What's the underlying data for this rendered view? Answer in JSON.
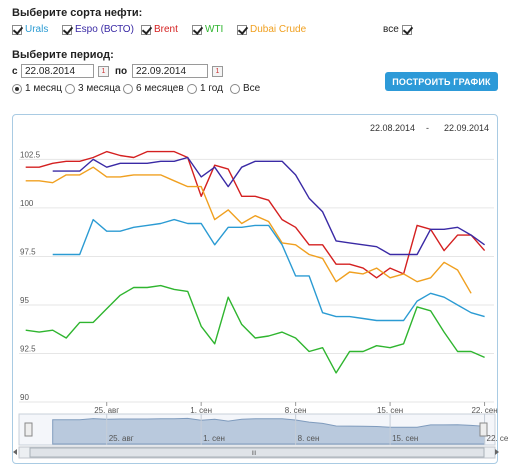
{
  "oil_select": {
    "title": "Выберите сорта нефти:",
    "items": [
      {
        "label": "Urals",
        "color": "#2b9bd3",
        "checked": true
      },
      {
        "label": "Espo (ВСТО)",
        "color": "#3a2aa5",
        "checked": true
      },
      {
        "label": "Brent",
        "color": "#d42020",
        "checked": true
      },
      {
        "label": "WTI",
        "color": "#2fb52f",
        "checked": true
      },
      {
        "label": "Dubai Crude",
        "color": "#f0a020",
        "checked": true
      }
    ],
    "all_label": "все",
    "all_checked": true
  },
  "period": {
    "title": "Выберите период:",
    "from_label": "с",
    "from_value": "22.08.2014",
    "to_label": "по",
    "to_value": "22.09.2014",
    "calendar_glyph": "1",
    "options": [
      "1 месяц",
      "3 месяца",
      "6 месяцев",
      "1 год",
      "Все"
    ],
    "selected": 0
  },
  "build_button": "ПОСТРОИТЬ ГРАФИК",
  "chart_range": {
    "from": "22.08.2014",
    "sep": "-",
    "to": "22.09.2014"
  },
  "navigator": {
    "labels": [
      "25. авг",
      "1. сен",
      "8. сен",
      "15. сен",
      "22. се"
    ],
    "scroll_glyph": "III"
  },
  "chart_data": {
    "type": "line",
    "title": "",
    "xlabel": "",
    "ylabel": "",
    "ylim": [
      90,
      103.5
    ],
    "yticks": [
      90,
      92.5,
      95,
      97.5,
      100,
      102.5
    ],
    "xticks": [
      "25. авг",
      "1. сен",
      "8. сен",
      "15. сен",
      "22. сен"
    ],
    "series": [
      {
        "name": "Brent",
        "color": "#d42020",
        "points": [
          [
            -3,
            102.1
          ],
          [
            -2,
            102.1
          ],
          [
            -1,
            102.3
          ],
          [
            0,
            102.4
          ],
          [
            1,
            102.4
          ],
          [
            2,
            102.6
          ],
          [
            3,
            102.9
          ],
          [
            4,
            102.7
          ],
          [
            5,
            102.6
          ],
          [
            6,
            102.9
          ],
          [
            7,
            102.9
          ],
          [
            8,
            102.9
          ],
          [
            9,
            102.6
          ],
          [
            10,
            100.6
          ],
          [
            11,
            102.2
          ],
          [
            12,
            102.0
          ],
          [
            13,
            100.6
          ],
          [
            14,
            100.6
          ],
          [
            15,
            100.4
          ],
          [
            16,
            99.4
          ],
          [
            17,
            99.0
          ],
          [
            18,
            98.1
          ],
          [
            19,
            98.1
          ],
          [
            20,
            97.1
          ],
          [
            21,
            97.1
          ],
          [
            22,
            96.9
          ],
          [
            23,
            96.4
          ],
          [
            24,
            96.9
          ],
          [
            25,
            96.6
          ],
          [
            26,
            99.1
          ],
          [
            27,
            98.9
          ],
          [
            28,
            97.8
          ],
          [
            29,
            98.6
          ],
          [
            30,
            98.6
          ],
          [
            31,
            97.8
          ]
        ]
      },
      {
        "name": "Espo (ВСТО)",
        "color": "#3a2aa5",
        "points": [
          [
            -1,
            101.9
          ],
          [
            0,
            101.9
          ],
          [
            1,
            101.9
          ],
          [
            2,
            102.5
          ],
          [
            3,
            102.1
          ],
          [
            4,
            102.3
          ],
          [
            5,
            102.3
          ],
          [
            6,
            102.3
          ],
          [
            7,
            102.4
          ],
          [
            8,
            102.4
          ],
          [
            9,
            102.6
          ],
          [
            10,
            101.6
          ],
          [
            11,
            102.1
          ],
          [
            12,
            101.1
          ],
          [
            13,
            102.1
          ],
          [
            14,
            102.4
          ],
          [
            15,
            102.4
          ],
          [
            16,
            102.4
          ],
          [
            17,
            101.7
          ],
          [
            18,
            100.5
          ],
          [
            19,
            99.8
          ],
          [
            20,
            98.3
          ],
          [
            21,
            98.2
          ],
          [
            22,
            98.1
          ],
          [
            23,
            98.0
          ],
          [
            24,
            97.6
          ],
          [
            25,
            97.6
          ],
          [
            26,
            97.6
          ],
          [
            27,
            98.9
          ],
          [
            28,
            98.9
          ],
          [
            29,
            99.0
          ],
          [
            30,
            98.6
          ],
          [
            31,
            98.1
          ]
        ]
      },
      {
        "name": "Dubai Crude",
        "color": "#f0a020",
        "points": [
          [
            -3,
            101.4
          ],
          [
            -2,
            101.4
          ],
          [
            -1,
            101.3
          ],
          [
            0,
            101.7
          ],
          [
            1,
            101.7
          ],
          [
            2,
            102.1
          ],
          [
            3,
            101.6
          ],
          [
            4,
            101.6
          ],
          [
            5,
            101.7
          ],
          [
            6,
            101.7
          ],
          [
            7,
            101.7
          ],
          [
            8,
            101.4
          ],
          [
            9,
            101.1
          ],
          [
            10,
            101.1
          ],
          [
            11,
            99.4
          ],
          [
            12,
            99.9
          ],
          [
            13,
            99.2
          ],
          [
            14,
            99.6
          ],
          [
            15,
            99.3
          ],
          [
            16,
            98.2
          ],
          [
            17,
            98.1
          ],
          [
            18,
            97.6
          ],
          [
            19,
            97.4
          ],
          [
            20,
            96.2
          ],
          [
            21,
            96.7
          ],
          [
            22,
            96.6
          ],
          [
            23,
            96.9
          ],
          [
            24,
            96.4
          ],
          [
            25,
            96.6
          ],
          [
            26,
            96.2
          ],
          [
            27,
            96.4
          ],
          [
            28,
            97.2
          ],
          [
            29,
            96.8
          ],
          [
            30,
            95.6
          ]
        ]
      },
      {
        "name": "Urals",
        "color": "#2b9bd3",
        "points": [
          [
            -1,
            97.6
          ],
          [
            0,
            97.6
          ],
          [
            1,
            97.6
          ],
          [
            2,
            99.4
          ],
          [
            3,
            98.8
          ],
          [
            4,
            98.8
          ],
          [
            5,
            99.0
          ],
          [
            6,
            99.1
          ],
          [
            7,
            99.2
          ],
          [
            8,
            99.4
          ],
          [
            9,
            99.2
          ],
          [
            10,
            99.2
          ],
          [
            11,
            98.1
          ],
          [
            12,
            99.0
          ],
          [
            13,
            99.0
          ],
          [
            14,
            99.1
          ],
          [
            15,
            99.1
          ],
          [
            16,
            98.1
          ],
          [
            17,
            96.5
          ],
          [
            18,
            96.5
          ],
          [
            19,
            94.6
          ],
          [
            20,
            94.4
          ],
          [
            21,
            94.4
          ],
          [
            22,
            94.3
          ],
          [
            23,
            94.2
          ],
          [
            24,
            94.2
          ],
          [
            25,
            94.2
          ],
          [
            26,
            95.2
          ],
          [
            27,
            95.6
          ],
          [
            28,
            95.4
          ],
          [
            29,
            95.0
          ],
          [
            30,
            94.6
          ],
          [
            31,
            94.4
          ]
        ]
      },
      {
        "name": "WTI",
        "color": "#2fb52f",
        "points": [
          [
            -3,
            93.7
          ],
          [
            -2,
            93.6
          ],
          [
            -1,
            93.7
          ],
          [
            0,
            93.3
          ],
          [
            1,
            94.1
          ],
          [
            2,
            94.1
          ],
          [
            3,
            94.8
          ],
          [
            4,
            95.5
          ],
          [
            5,
            95.9
          ],
          [
            6,
            95.9
          ],
          [
            7,
            96.0
          ],
          [
            8,
            95.8
          ],
          [
            9,
            95.7
          ],
          [
            10,
            93.9
          ],
          [
            11,
            93.0
          ],
          [
            12,
            95.4
          ],
          [
            13,
            94.0
          ],
          [
            14,
            93.3
          ],
          [
            15,
            93.4
          ],
          [
            16,
            93.6
          ],
          [
            17,
            93.3
          ],
          [
            18,
            92.6
          ],
          [
            19,
            92.8
          ],
          [
            20,
            91.5
          ],
          [
            21,
            92.6
          ],
          [
            22,
            92.6
          ],
          [
            23,
            92.9
          ],
          [
            24,
            92.8
          ],
          [
            25,
            93.0
          ],
          [
            26,
            94.9
          ],
          [
            27,
            94.7
          ],
          [
            28,
            93.6
          ],
          [
            29,
            92.6
          ],
          [
            30,
            92.6
          ],
          [
            31,
            92.3
          ]
        ]
      }
    ]
  }
}
